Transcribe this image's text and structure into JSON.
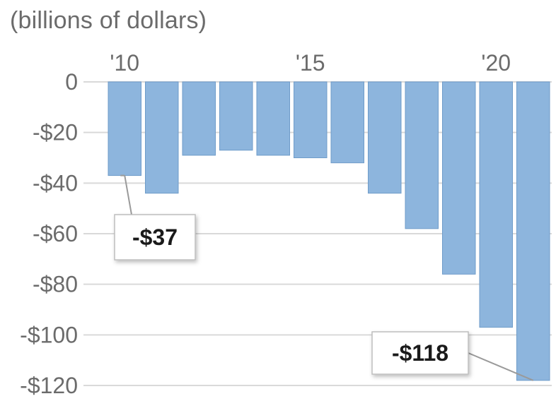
{
  "chart_data": {
    "type": "bar",
    "unit_label": "(billions of dollars)",
    "categories": [
      "2010",
      "2011",
      "2012",
      "2013",
      "2014",
      "2015",
      "2016",
      "2017",
      "2018",
      "2019",
      "2020",
      "2021"
    ],
    "x_tick_labels": [
      {
        "category": "2010",
        "label": "'10"
      },
      {
        "category": "2015",
        "label": "'15"
      },
      {
        "category": "2020",
        "label": "'20"
      }
    ],
    "values": [
      -37,
      -44,
      -29,
      -27,
      -29,
      -30,
      -32,
      -44,
      -58,
      -76,
      -97,
      -118
    ],
    "ylim": [
      -120,
      0
    ],
    "y_ticks": [
      {
        "value": 0,
        "label": "0"
      },
      {
        "value": -20,
        "label": "-$20"
      },
      {
        "value": -40,
        "label": "-$40"
      },
      {
        "value": -60,
        "label": "-$60"
      },
      {
        "value": -80,
        "label": "-$80"
      },
      {
        "value": -100,
        "label": "-$100"
      },
      {
        "value": -120,
        "label": "-$120"
      }
    ],
    "grid": true,
    "annotations": [
      {
        "category": "2010",
        "text": "-$37"
      },
      {
        "category": "2021",
        "text": "-$118"
      }
    ],
    "colors": {
      "bar": "#8db5dd",
      "bar_edge": "#6f9cc9",
      "grid": "#d9d9d9",
      "tick_text": "#6b6b6b",
      "callout_border": "#bdbdbd"
    }
  }
}
